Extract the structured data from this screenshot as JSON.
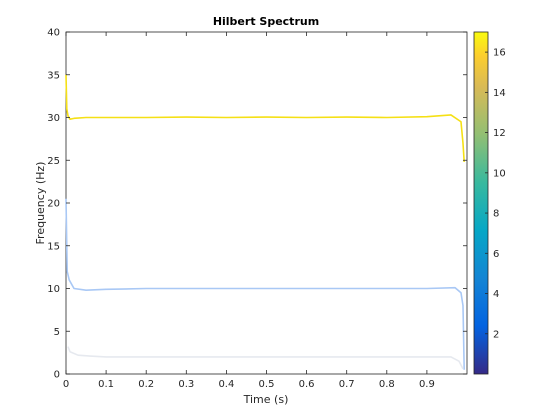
{
  "chart_data": {
    "type": "line",
    "title": "Hilbert Spectrum",
    "xlabel": "Time (s)",
    "ylabel": "Frequency (Hz)",
    "xlim": [
      0,
      1
    ],
    "ylim": [
      0,
      40
    ],
    "xticks": [
      0,
      0.1,
      0.2,
      0.3,
      0.4,
      0.5,
      0.6,
      0.7,
      0.8,
      0.9
    ],
    "yticks": [
      0,
      5,
      10,
      15,
      20,
      25,
      30,
      35,
      40
    ],
    "grid": false,
    "colorbar": {
      "colormap": "parula",
      "range": [
        0,
        17
      ],
      "ticks": [
        2,
        4,
        6,
        8,
        10,
        12,
        14,
        16
      ]
    },
    "series": [
      {
        "color": "#f5e015",
        "amplitude": 16.5,
        "points": [
          [
            0.0,
            35.0
          ],
          [
            0.002,
            31.0
          ],
          [
            0.005,
            30.2
          ],
          [
            0.01,
            29.8
          ],
          [
            0.02,
            29.9
          ],
          [
            0.05,
            30.0
          ],
          [
            0.1,
            30.0
          ],
          [
            0.2,
            30.0
          ],
          [
            0.3,
            30.05
          ],
          [
            0.4,
            30.0
          ],
          [
            0.5,
            30.05
          ],
          [
            0.6,
            30.0
          ],
          [
            0.7,
            30.05
          ],
          [
            0.8,
            30.0
          ],
          [
            0.9,
            30.1
          ],
          [
            0.96,
            30.3
          ],
          [
            0.985,
            29.5
          ],
          [
            0.99,
            27.0
          ],
          [
            0.993,
            24.8
          ]
        ]
      },
      {
        "color": "#a9c8f5",
        "amplitude": 4.5,
        "points": [
          [
            0.0,
            20.5
          ],
          [
            0.003,
            12.0
          ],
          [
            0.008,
            11.0
          ],
          [
            0.02,
            10.0
          ],
          [
            0.05,
            9.8
          ],
          [
            0.1,
            9.9
          ],
          [
            0.2,
            10.0
          ],
          [
            0.3,
            10.0
          ],
          [
            0.4,
            10.0
          ],
          [
            0.5,
            10.0
          ],
          [
            0.6,
            10.0
          ],
          [
            0.7,
            10.0
          ],
          [
            0.8,
            10.0
          ],
          [
            0.9,
            10.0
          ],
          [
            0.97,
            10.1
          ],
          [
            0.985,
            9.5
          ],
          [
            0.99,
            8.0
          ],
          [
            0.993,
            0.5
          ]
        ]
      },
      {
        "color": "#e6e9ef",
        "amplitude": 1.5,
        "points": [
          [
            0.005,
            3.2
          ],
          [
            0.01,
            2.6
          ],
          [
            0.03,
            2.2
          ],
          [
            0.06,
            2.1
          ],
          [
            0.1,
            2.0
          ],
          [
            0.2,
            2.0
          ],
          [
            0.3,
            2.0
          ],
          [
            0.4,
            2.0
          ],
          [
            0.5,
            2.0
          ],
          [
            0.6,
            2.0
          ],
          [
            0.7,
            2.0
          ],
          [
            0.8,
            2.0
          ],
          [
            0.9,
            2.0
          ],
          [
            0.96,
            2.0
          ],
          [
            0.98,
            1.5
          ],
          [
            0.99,
            0.6
          ]
        ]
      }
    ]
  }
}
